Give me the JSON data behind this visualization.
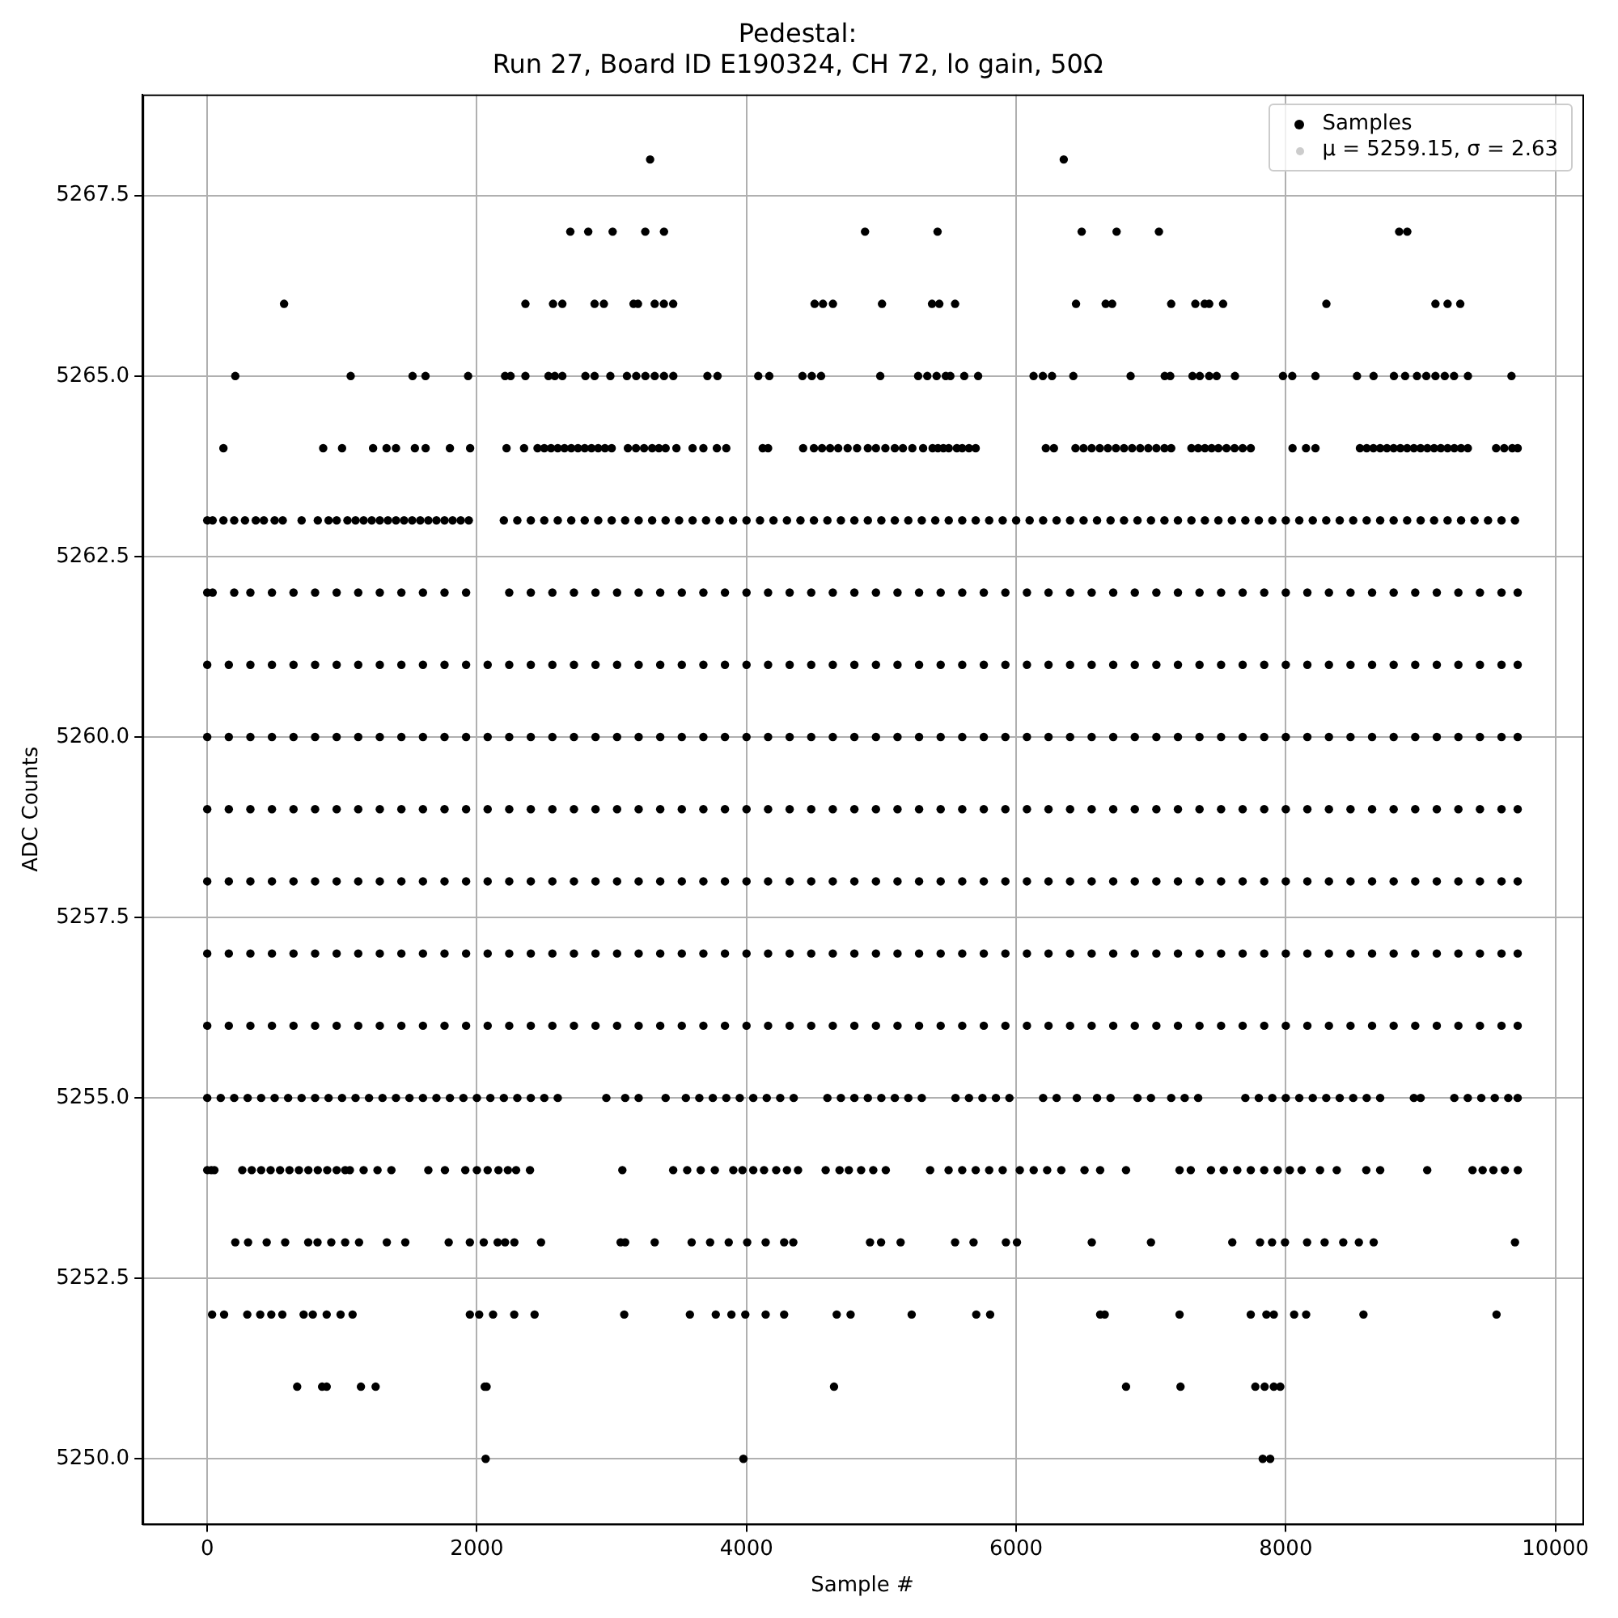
{
  "chart_data": {
    "type": "scatter",
    "title": "Pedestal:\nRun 27, Board ID E190324, CH 72, lo gain, 50Ω",
    "xlabel": "Sample #",
    "ylabel": "ADC Counts",
    "xlim": [
      -480,
      10200
    ],
    "xticks": [
      0,
      2000,
      4000,
      6000,
      8000,
      10000
    ],
    "ylim": [
      5249.1,
      5268.9
    ],
    "yticks": [
      {
        "value": 5250,
        "label": "5250.0"
      },
      {
        "value": 5252.5,
        "label": "5252.5"
      },
      {
        "value": 5255,
        "label": "5255.0"
      },
      {
        "value": 5257.5,
        "label": "5257.5"
      },
      {
        "value": 5260,
        "label": "5260.0"
      },
      {
        "value": 5262.5,
        "label": "5262.5"
      },
      {
        "value": 5265,
        "label": "5265.0"
      },
      {
        "value": 5267.5,
        "label": "5267.5"
      }
    ],
    "grid": true,
    "legend": "top right",
    "marker": "circle",
    "series": [
      {
        "name": "Samples",
        "color": "#000000",
        "x": [
          3285,
          6353,
          2693,
          2826,
          3007,
          3249,
          3388,
          4879,
          5417,
          6486,
          6745,
          7059,
          8841,
          8901,
          570,
          2360,
          2565,
          2634,
          2873,
          2942,
          3162,
          3195,
          3319,
          3387,
          3456,
          4505,
          4567,
          4641,
          5005,
          5376,
          5430,
          5547,
          6444,
          6664,
          6712,
          7150,
          7329,
          7398,
          7432,
          7535,
          8301,
          9110,
          9200,
          9294,
          208,
          1064,
          1523,
          1619,
          1935,
          2209,
          2250,
          2360,
          2531,
          2578,
          2634,
          2805,
          2873,
          2990,
          3113,
          3182,
          3250,
          3319,
          3388,
          3457,
          3710,
          3785,
          4087,
          4169,
          4415,
          4484,
          4553,
          4992,
          5273,
          5341,
          5410,
          5478,
          5512,
          5615,
          5718,
          6129,
          6198,
          6266,
          6424,
          6849,
          7102,
          7143,
          7308,
          7362,
          7432,
          7487,
          7623,
          7979,
          8048,
          8220,
          8528,
          8651,
          8802,
          8885,
          8973,
          9042,
          9110,
          9179,
          9248,
          9351,
          9674,
          120,
          860,
          1000,
          1230,
          1330,
          1400,
          1540,
          1620,
          1800,
          1950,
          2220,
          2350,
          2450,
          2500,
          2550,
          2600,
          2650,
          2700,
          2750,
          2800,
          2850,
          2900,
          2950,
          3000,
          3120,
          3180,
          3240,
          3300,
          3350,
          3400,
          3480,
          3600,
          3680,
          3780,
          3850,
          4120,
          4160,
          4420,
          4500,
          4560,
          4620,
          4680,
          4750,
          4820,
          4900,
          4960,
          5030,
          5100,
          5160,
          5230,
          5310,
          5380,
          5420,
          5460,
          5500,
          5560,
          5600,
          5650,
          5700,
          6220,
          6280,
          6440,
          6500,
          6560,
          6620,
          6680,
          6740,
          6800,
          6860,
          6920,
          6980,
          7040,
          7100,
          7150,
          7300,
          7350,
          7400,
          7450,
          7500,
          7560,
          7620,
          7680,
          7740,
          8050,
          8150,
          8220,
          8550,
          8600,
          8650,
          8700,
          8750,
          8800,
          8850,
          8900,
          8950,
          9000,
          9050,
          9100,
          9150,
          9200,
          9250,
          9300,
          9350,
          9560,
          9620,
          9680,
          9720,
          0,
          40,
          120,
          200,
          280,
          360,
          420,
          500,
          560,
          700,
          820,
          900,
          960,
          1040,
          1100,
          1160,
          1220,
          1280,
          1340,
          1400,
          1460,
          1520,
          1580,
          1640,
          1700,
          1760,
          1820,
          1880,
          1940,
          2200,
          2300,
          2400,
          2500,
          2600,
          2700,
          2800,
          2900,
          3000,
          3100,
          3200,
          3300,
          3400,
          3500,
          3600,
          3700,
          3800,
          3900,
          4000,
          4100,
          4200,
          4300,
          4400,
          4500,
          4600,
          4700,
          4800,
          4900,
          5000,
          5100,
          5200,
          5300,
          5400,
          5500,
          5600,
          5700,
          5800,
          5900,
          6000,
          6100,
          6200,
          6300,
          6400,
          6500,
          6600,
          6700,
          6800,
          6900,
          7000,
          7100,
          7200,
          7300,
          7400,
          7500,
          7600,
          7700,
          7800,
          7900,
          8000,
          8100,
          8200,
          8300,
          8400,
          8500,
          8600,
          8700,
          8800,
          8900,
          9000,
          9100,
          9200,
          9300,
          9400,
          9500,
          9600,
          9700,
          0,
          40,
          200,
          320,
          480,
          640,
          800,
          960,
          1120,
          1280,
          1440,
          1600,
          1760,
          1920,
          2240,
          2400,
          2560,
          2720,
          2880,
          3040,
          3200,
          3360,
          3520,
          3680,
          3840,
          4000,
          4160,
          4320,
          4480,
          4640,
          4800,
          4960,
          5120,
          5280,
          5440,
          5600,
          5760,
          5920,
          6080,
          6240,
          6400,
          6560,
          6720,
          6880,
          7040,
          7200,
          7360,
          7520,
          7680,
          7840,
          8000,
          8160,
          8320,
          8480,
          8640,
          8800,
          8960,
          9120,
          9280,
          9440,
          9600,
          9720,
          0,
          160,
          320,
          480,
          640,
          800,
          960,
          1120,
          1280,
          1440,
          1600,
          1760,
          1920,
          2080,
          2240,
          2400,
          2560,
          2720,
          2880,
          3040,
          3200,
          3360,
          3520,
          3680,
          3840,
          4000,
          4160,
          4320,
          4480,
          4640,
          4800,
          4960,
          5120,
          5280,
          5440,
          5600,
          5760,
          5920,
          6080,
          6240,
          6400,
          6560,
          6720,
          6880,
          7040,
          7200,
          7360,
          7520,
          7680,
          7840,
          8000,
          8160,
          8320,
          8480,
          8640,
          8800,
          8960,
          9120,
          9280,
          9440,
          9600,
          9720,
          0,
          160,
          320,
          480,
          640,
          800,
          960,
          1120,
          1280,
          1440,
          1600,
          1760,
          1920,
          2080,
          2240,
          2400,
          2560,
          2720,
          2880,
          3040,
          3200,
          3360,
          3520,
          3680,
          3840,
          4000,
          4160,
          4320,
          4480,
          4640,
          4800,
          4960,
          5120,
          5280,
          5440,
          5600,
          5760,
          5920,
          6080,
          6240,
          6400,
          6560,
          6720,
          6880,
          7040,
          7200,
          7360,
          7520,
          7680,
          7840,
          8000,
          8160,
          8320,
          8480,
          8640,
          8800,
          8960,
          9120,
          9280,
          9440,
          9600,
          9720,
          0,
          160,
          320,
          480,
          640,
          800,
          960,
          1120,
          1280,
          1440,
          1600,
          1760,
          1920,
          2080,
          2240,
          2400,
          2560,
          2720,
          2880,
          3040,
          3200,
          3360,
          3520,
          3680,
          3840,
          4000,
          4160,
          4320,
          4480,
          4640,
          4800,
          4960,
          5120,
          5280,
          5440,
          5600,
          5760,
          5920,
          6080,
          6240,
          6400,
          6560,
          6720,
          6880,
          7040,
          7200,
          7360,
          7520,
          7680,
          7840,
          8000,
          8160,
          8320,
          8480,
          8640,
          8800,
          8960,
          9120,
          9280,
          9440,
          9600,
          9720,
          0,
          160,
          320,
          480,
          640,
          800,
          960,
          1120,
          1280,
          1440,
          1600,
          1760,
          1920,
          2080,
          2240,
          2400,
          2560,
          2720,
          2880,
          3040,
          3200,
          3360,
          3520,
          3680,
          3840,
          4000,
          4160,
          4320,
          4480,
          4640,
          4800,
          4960,
          5120,
          5280,
          5440,
          5600,
          5760,
          5920,
          6080,
          6240,
          6400,
          6560,
          6720,
          6880,
          7040,
          7200,
          7360,
          7520,
          7680,
          7840,
          8000,
          8160,
          8320,
          8480,
          8640,
          8800,
          8960,
          9120,
          9280,
          9440,
          9600,
          9720,
          0,
          160,
          320,
          480,
          640,
          800,
          960,
          1120,
          1280,
          1440,
          1600,
          1760,
          1920,
          2080,
          2240,
          2400,
          2560,
          2720,
          2880,
          3040,
          3200,
          3360,
          3520,
          3680,
          3840,
          4000,
          4160,
          4320,
          4480,
          4640,
          4800,
          4960,
          5120,
          5280,
          5440,
          5600,
          5760,
          5920,
          6080,
          6240,
          6400,
          6560,
          6720,
          6880,
          7040,
          7200,
          7360,
          7520,
          7680,
          7840,
          8000,
          8160,
          8320,
          8480,
          8640,
          8800,
          8960,
          9120,
          9280,
          9440,
          9600,
          9720,
          0,
          160,
          320,
          480,
          640,
          800,
          960,
          1120,
          1280,
          1440,
          1600,
          1760,
          1920,
          2080,
          2240,
          2400,
          2560,
          2720,
          2880,
          3040,
          3200,
          3360,
          3520,
          3680,
          3840,
          4000,
          4160,
          4320,
          4480,
          4640,
          4800,
          4960,
          5120,
          5280,
          5440,
          5600,
          5760,
          5920,
          6080,
          6240,
          6400,
          6560,
          6720,
          6880,
          7040,
          7200,
          7360,
          7520,
          7680,
          7840,
          8000,
          8160,
          8320,
          8480,
          8640,
          8800,
          8960,
          9120,
          9280,
          9440,
          9600,
          9720,
          0,
          100,
          200,
          300,
          400,
          500,
          600,
          700,
          800,
          900,
          1000,
          1100,
          1200,
          1300,
          1400,
          1500,
          1600,
          1700,
          1800,
          1900,
          2000,
          2100,
          2200,
          2300,
          2400,
          2500,
          2600,
          2960,
          3100,
          3200,
          3400,
          3550,
          3650,
          3750,
          3850,
          3950,
          4050,
          4150,
          4250,
          4350,
          4600,
          4700,
          4800,
          4900,
          5000,
          5100,
          5200,
          5300,
          5550,
          5650,
          5750,
          5850,
          5950,
          6200,
          6300,
          6450,
          6600,
          6700,
          6900,
          7000,
          7150,
          7250,
          7350,
          7700,
          7800,
          7900,
          8000,
          8100,
          8200,
          8300,
          8400,
          8500,
          8600,
          8700,
          8950,
          9000,
          9250,
          9350,
          9450,
          9550,
          9650,
          9720,
          0,
          30,
          53,
          260,
          330,
          400,
          470,
          540,
          610,
          680,
          750,
          820,
          890,
          960,
          1023,
          1058,
          1160,
          1263,
          1366,
          1640,
          1763,
          1914,
          2000,
          2080,
          2160,
          2230,
          2291,
          2394,
          3079,
          3456,
          3560,
          3660,
          3765,
          3902,
          3970,
          4050,
          4130,
          4220,
          4300,
          4382,
          4587,
          4690,
          4759,
          4850,
          4940,
          5033,
          5362,
          5499,
          5600,
          5700,
          5800,
          5900,
          6027,
          6130,
          6230,
          6335,
          6507,
          6623,
          6815,
          7212,
          7295,
          7445,
          7540,
          7640,
          7740,
          7840,
          7940,
          8030,
          8117,
          8254,
          8378,
          8597,
          8700,
          9049,
          9385,
          9460,
          9540,
          9625,
          9721,
          208,
          303,
          441,
          578,
          749,
          818,
          920,
          1023,
          1126,
          1332,
          1469,
          1791,
          1948,
          2051,
          2154,
          2209,
          2278,
          2476,
          3066,
          3100,
          3319,
          3593,
          3730,
          3868,
          4005,
          4142,
          4279,
          4347,
          4916,
          4998,
          5143,
          5547,
          5684,
          5924,
          6006,
          6561,
          7000,
          7603,
          7809,
          7898,
          7994,
          8158,
          8288,
          8426,
          8542,
          8652,
          9700,
          36,
          125,
          297,
          393,
          475,
          557,
          715,
          783,
          886,
          989,
          1078,
          1948,
          2017,
          2120,
          2277,
          2428,
          3093,
          3580,
          3772,
          3888,
          3991,
          4142,
          4279,
          4669,
          4772,
          5225,
          5704,
          5807,
          6623,
          6657,
          7212,
          7740,
          7856,
          7911,
          8062,
          8151,
          8576,
          9563,
          667,
          852,
          886,
          1140,
          1249,
          2058,
          2072,
          4649,
          6815,
          7219,
          7774,
          7843,
          7911,
          7959,
          2065,
          3977,
          7829,
          7884
        ],
        "values": [
          5268,
          5268,
          5267,
          5267,
          5267,
          5267,
          5267,
          5267,
          5267,
          5267,
          5267,
          5267,
          5267,
          5267,
          5266,
          5266,
          5266,
          5266,
          5266,
          5266,
          5266,
          5266,
          5266,
          5266,
          5266,
          5266,
          5266,
          5266,
          5266,
          5266,
          5266,
          5266,
          5266,
          5266,
          5266,
          5266,
          5266,
          5266,
          5266,
          5266,
          5266,
          5266,
          5266,
          5266,
          5265,
          5265,
          5265,
          5265,
          5265,
          5265,
          5265,
          5265,
          5265,
          5265,
          5265,
          5265,
          5265,
          5265,
          5265,
          5265,
          5265,
          5265,
          5265,
          5265,
          5265,
          5265,
          5265,
          5265,
          5265,
          5265,
          5265,
          5265,
          5265,
          5265,
          5265,
          5265,
          5265,
          5265,
          5265,
          5265,
          5265,
          5265,
          5265,
          5265,
          5265,
          5265,
          5265,
          5265,
          5265,
          5265,
          5265,
          5265,
          5265,
          5265,
          5265,
          5265,
          5265,
          5265,
          5265,
          5265,
          5265,
          5265,
          5265,
          5265,
          5265,
          5264,
          5264,
          5264,
          5264,
          5264,
          5264,
          5264,
          5264,
          5264,
          5264,
          5264,
          5264,
          5264,
          5264,
          5264,
          5264,
          5264,
          5264,
          5264,
          5264,
          5264,
          5264,
          5264,
          5264,
          5264,
          5264,
          5264,
          5264,
          5264,
          5264,
          5264,
          5264,
          5264,
          5264,
          5264,
          5264,
          5264,
          5264,
          5264,
          5264,
          5264,
          5264,
          5264,
          5264,
          5264,
          5264,
          5264,
          5264,
          5264,
          5264,
          5264,
          5264,
          5264,
          5264,
          5264,
          5264,
          5264,
          5264,
          5264,
          5264,
          5264,
          5264,
          5264,
          5264,
          5264,
          5264,
          5264,
          5264,
          5264,
          5264,
          5264,
          5264,
          5264,
          5264,
          5264,
          5264,
          5264,
          5264,
          5264,
          5264,
          5264,
          5264,
          5264,
          5264,
          5264,
          5264,
          5264,
          5264,
          5264,
          5264,
          5264,
          5264,
          5264,
          5264,
          5264,
          5264,
          5264,
          5264,
          5264,
          5264,
          5264,
          5264,
          5264,
          5264,
          5264,
          5264,
          5264,
          5263,
          5263,
          5263,
          5263,
          5263,
          5263,
          5263,
          5263,
          5263,
          5263,
          5263,
          5263,
          5263,
          5263,
          5263,
          5263,
          5263,
          5263,
          5263,
          5263,
          5263,
          5263,
          5263,
          5263,
          5263,
          5263,
          5263,
          5263,
          5263,
          5263,
          5263,
          5263,
          5263,
          5263,
          5263,
          5263,
          5263,
          5263,
          5263,
          5263,
          5263,
          5263,
          5263,
          5263,
          5263,
          5263,
          5263,
          5263,
          5263,
          5263,
          5263,
          5263,
          5263,
          5263,
          5263,
          5263,
          5263,
          5263,
          5263,
          5263,
          5263,
          5263,
          5263,
          5263,
          5263,
          5263,
          5263,
          5263,
          5263,
          5263,
          5263,
          5263,
          5263,
          5263,
          5263,
          5263,
          5263,
          5263,
          5263,
          5263,
          5263,
          5263,
          5263,
          5263,
          5263,
          5263,
          5263,
          5263,
          5263,
          5263,
          5263,
          5263,
          5263,
          5263,
          5263,
          5263,
          5263,
          5263,
          5263,
          5263,
          5263,
          5263,
          5263,
          5263,
          5263,
          5262,
          5262,
          5262,
          5262,
          5262,
          5262,
          5262,
          5262,
          5262,
          5262,
          5262,
          5262,
          5262,
          5262,
          5262,
          5262,
          5262,
          5262,
          5262,
          5262,
          5262,
          5262,
          5262,
          5262,
          5262,
          5262,
          5262,
          5262,
          5262,
          5262,
          5262,
          5262,
          5262,
          5262,
          5262,
          5262,
          5262,
          5262,
          5262,
          5262,
          5262,
          5262,
          5262,
          5262,
          5262,
          5262,
          5262,
          5262,
          5262,
          5262,
          5262,
          5262,
          5262,
          5262,
          5262,
          5262,
          5262,
          5262,
          5262,
          5262,
          5262,
          5262,
          5261,
          5261,
          5261,
          5261,
          5261,
          5261,
          5261,
          5261,
          5261,
          5261,
          5261,
          5261,
          5261,
          5261,
          5261,
          5261,
          5261,
          5261,
          5261,
          5261,
          5261,
          5261,
          5261,
          5261,
          5261,
          5261,
          5261,
          5261,
          5261,
          5261,
          5261,
          5261,
          5261,
          5261,
          5261,
          5261,
          5261,
          5261,
          5261,
          5261,
          5261,
          5261,
          5261,
          5261,
          5261,
          5261,
          5261,
          5261,
          5261,
          5261,
          5261,
          5261,
          5261,
          5261,
          5261,
          5261,
          5261,
          5261,
          5261,
          5261,
          5261,
          5261,
          5260,
          5260,
          5260,
          5260,
          5260,
          5260,
          5260,
          5260,
          5260,
          5260,
          5260,
          5260,
          5260,
          5260,
          5260,
          5260,
          5260,
          5260,
          5260,
          5260,
          5260,
          5260,
          5260,
          5260,
          5260,
          5260,
          5260,
          5260,
          5260,
          5260,
          5260,
          5260,
          5260,
          5260,
          5260,
          5260,
          5260,
          5260,
          5260,
          5260,
          5260,
          5260,
          5260,
          5260,
          5260,
          5260,
          5260,
          5260,
          5260,
          5260,
          5260,
          5260,
          5260,
          5260,
          5260,
          5260,
          5260,
          5260,
          5260,
          5260,
          5260,
          5260,
          5259,
          5259,
          5259,
          5259,
          5259,
          5259,
          5259,
          5259,
          5259,
          5259,
          5259,
          5259,
          5259,
          5259,
          5259,
          5259,
          5259,
          5259,
          5259,
          5259,
          5259,
          5259,
          5259,
          5259,
          5259,
          5259,
          5259,
          5259,
          5259,
          5259,
          5259,
          5259,
          5259,
          5259,
          5259,
          5259,
          5259,
          5259,
          5259,
          5259,
          5259,
          5259,
          5259,
          5259,
          5259,
          5259,
          5259,
          5259,
          5259,
          5259,
          5259,
          5259,
          5259,
          5259,
          5259,
          5259,
          5259,
          5259,
          5259,
          5259,
          5259,
          5259,
          5258,
          5258,
          5258,
          5258,
          5258,
          5258,
          5258,
          5258,
          5258,
          5258,
          5258,
          5258,
          5258,
          5258,
          5258,
          5258,
          5258,
          5258,
          5258,
          5258,
          5258,
          5258,
          5258,
          5258,
          5258,
          5258,
          5258,
          5258,
          5258,
          5258,
          5258,
          5258,
          5258,
          5258,
          5258,
          5258,
          5258,
          5258,
          5258,
          5258,
          5258,
          5258,
          5258,
          5258,
          5258,
          5258,
          5258,
          5258,
          5258,
          5258,
          5258,
          5258,
          5258,
          5258,
          5258,
          5258,
          5258,
          5258,
          5258,
          5258,
          5258,
          5258,
          5257,
          5257,
          5257,
          5257,
          5257,
          5257,
          5257,
          5257,
          5257,
          5257,
          5257,
          5257,
          5257,
          5257,
          5257,
          5257,
          5257,
          5257,
          5257,
          5257,
          5257,
          5257,
          5257,
          5257,
          5257,
          5257,
          5257,
          5257,
          5257,
          5257,
          5257,
          5257,
          5257,
          5257,
          5257,
          5257,
          5257,
          5257,
          5257,
          5257,
          5257,
          5257,
          5257,
          5257,
          5257,
          5257,
          5257,
          5257,
          5257,
          5257,
          5257,
          5257,
          5257,
          5257,
          5257,
          5257,
          5257,
          5257,
          5257,
          5257,
          5257,
          5257,
          5256,
          5256,
          5256,
          5256,
          5256,
          5256,
          5256,
          5256,
          5256,
          5256,
          5256,
          5256,
          5256,
          5256,
          5256,
          5256,
          5256,
          5256,
          5256,
          5256,
          5256,
          5256,
          5256,
          5256,
          5256,
          5256,
          5256,
          5256,
          5256,
          5256,
          5256,
          5256,
          5256,
          5256,
          5256,
          5256,
          5256,
          5256,
          5256,
          5256,
          5256,
          5256,
          5256,
          5256,
          5256,
          5256,
          5256,
          5256,
          5256,
          5256,
          5256,
          5256,
          5256,
          5256,
          5256,
          5256,
          5256,
          5256,
          5256,
          5256,
          5256,
          5256,
          5255,
          5255,
          5255,
          5255,
          5255,
          5255,
          5255,
          5255,
          5255,
          5255,
          5255,
          5255,
          5255,
          5255,
          5255,
          5255,
          5255,
          5255,
          5255,
          5255,
          5255,
          5255,
          5255,
          5255,
          5255,
          5255,
          5255,
          5255,
          5255,
          5255,
          5255,
          5255,
          5255,
          5255,
          5255,
          5255,
          5255,
          5255,
          5255,
          5255,
          5255,
          5255,
          5255,
          5255,
          5255,
          5255,
          5255,
          5255,
          5255,
          5255,
          5255,
          5255,
          5255,
          5255,
          5255,
          5255,
          5255,
          5255,
          5255,
          5255,
          5255,
          5255,
          5255,
          5255,
          5255,
          5255,
          5255,
          5255,
          5255,
          5255,
          5255,
          5255,
          5255,
          5255,
          5255,
          5255,
          5255,
          5255,
          5255,
          5255,
          5255,
          5255,
          5254,
          5254,
          5254,
          5254,
          5254,
          5254,
          5254,
          5254,
          5254,
          5254,
          5254,
          5254,
          5254,
          5254,
          5254,
          5254,
          5254,
          5254,
          5254,
          5254,
          5254,
          5254,
          5254,
          5254,
          5254,
          5254,
          5254,
          5254,
          5254,
          5254,
          5254,
          5254,
          5254,
          5254,
          5254,
          5254,
          5254,
          5254,
          5254,
          5254,
          5254,
          5254,
          5254,
          5254,
          5254,
          5254,
          5254,
          5254,
          5254,
          5254,
          5254,
          5254,
          5254,
          5254,
          5254,
          5254,
          5254,
          5254,
          5254,
          5254,
          5254,
          5254,
          5254,
          5254,
          5254,
          5254,
          5254,
          5254,
          5254,
          5254,
          5254,
          5254,
          5254,
          5254,
          5254,
          5254,
          5254,
          5254,
          5254,
          5253,
          5253,
          5253,
          5253,
          5253,
          5253,
          5253,
          5253,
          5253,
          5253,
          5253,
          5253,
          5253,
          5253,
          5253,
          5253,
          5253,
          5253,
          5253,
          5253,
          5253,
          5253,
          5253,
          5253,
          5253,
          5253,
          5253,
          5253,
          5253,
          5253,
          5253,
          5253,
          5253,
          5253,
          5253,
          5253,
          5253,
          5253,
          5253,
          5253,
          5253,
          5253,
          5253,
          5253,
          5253,
          5253,
          5253,
          5252,
          5252,
          5252,
          5252,
          5252,
          5252,
          5252,
          5252,
          5252,
          5252,
          5252,
          5252,
          5252,
          5252,
          5252,
          5252,
          5252,
          5252,
          5252,
          5252,
          5252,
          5252,
          5252,
          5252,
          5252,
          5252,
          5252,
          5252,
          5252,
          5252,
          5252,
          5252,
          5252,
          5252,
          5252,
          5252,
          5252,
          5252,
          5251,
          5251,
          5251,
          5251,
          5251,
          5251,
          5251,
          5251,
          5251,
          5251,
          5251,
          5251,
          5251,
          5251,
          5250,
          5250,
          5250,
          5250
        ]
      },
      {
        "name": "μ = 5259.15, σ = 2.63",
        "color": "#cccccc"
      }
    ]
  }
}
